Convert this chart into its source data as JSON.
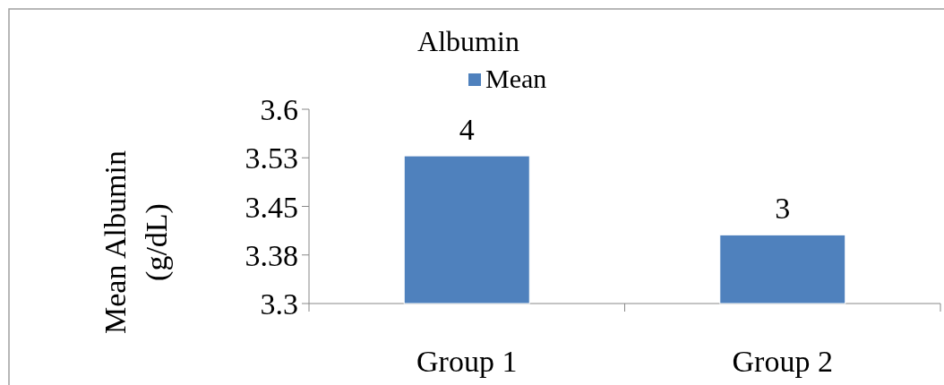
{
  "chart_data": {
    "type": "bar",
    "title": "Albumin",
    "ylabel": "Mean Albumin (g/dL)",
    "categories": [
      "Group 1",
      "Group 2"
    ],
    "series": [
      {
        "name": "Mean",
        "color": "#4f81bd",
        "values": [
          3.528,
          3.406
        ],
        "value_labels": [
          "4",
          "3"
        ]
      }
    ],
    "ylim": [
      3.3,
      3.6
    ],
    "yticks": [
      3.3,
      {
        "value": 3.375,
        "label": "3.38"
      },
      3.45,
      {
        "value": 3.525,
        "label": "3.53"
      },
      3.6
    ],
    "legend": "top"
  }
}
